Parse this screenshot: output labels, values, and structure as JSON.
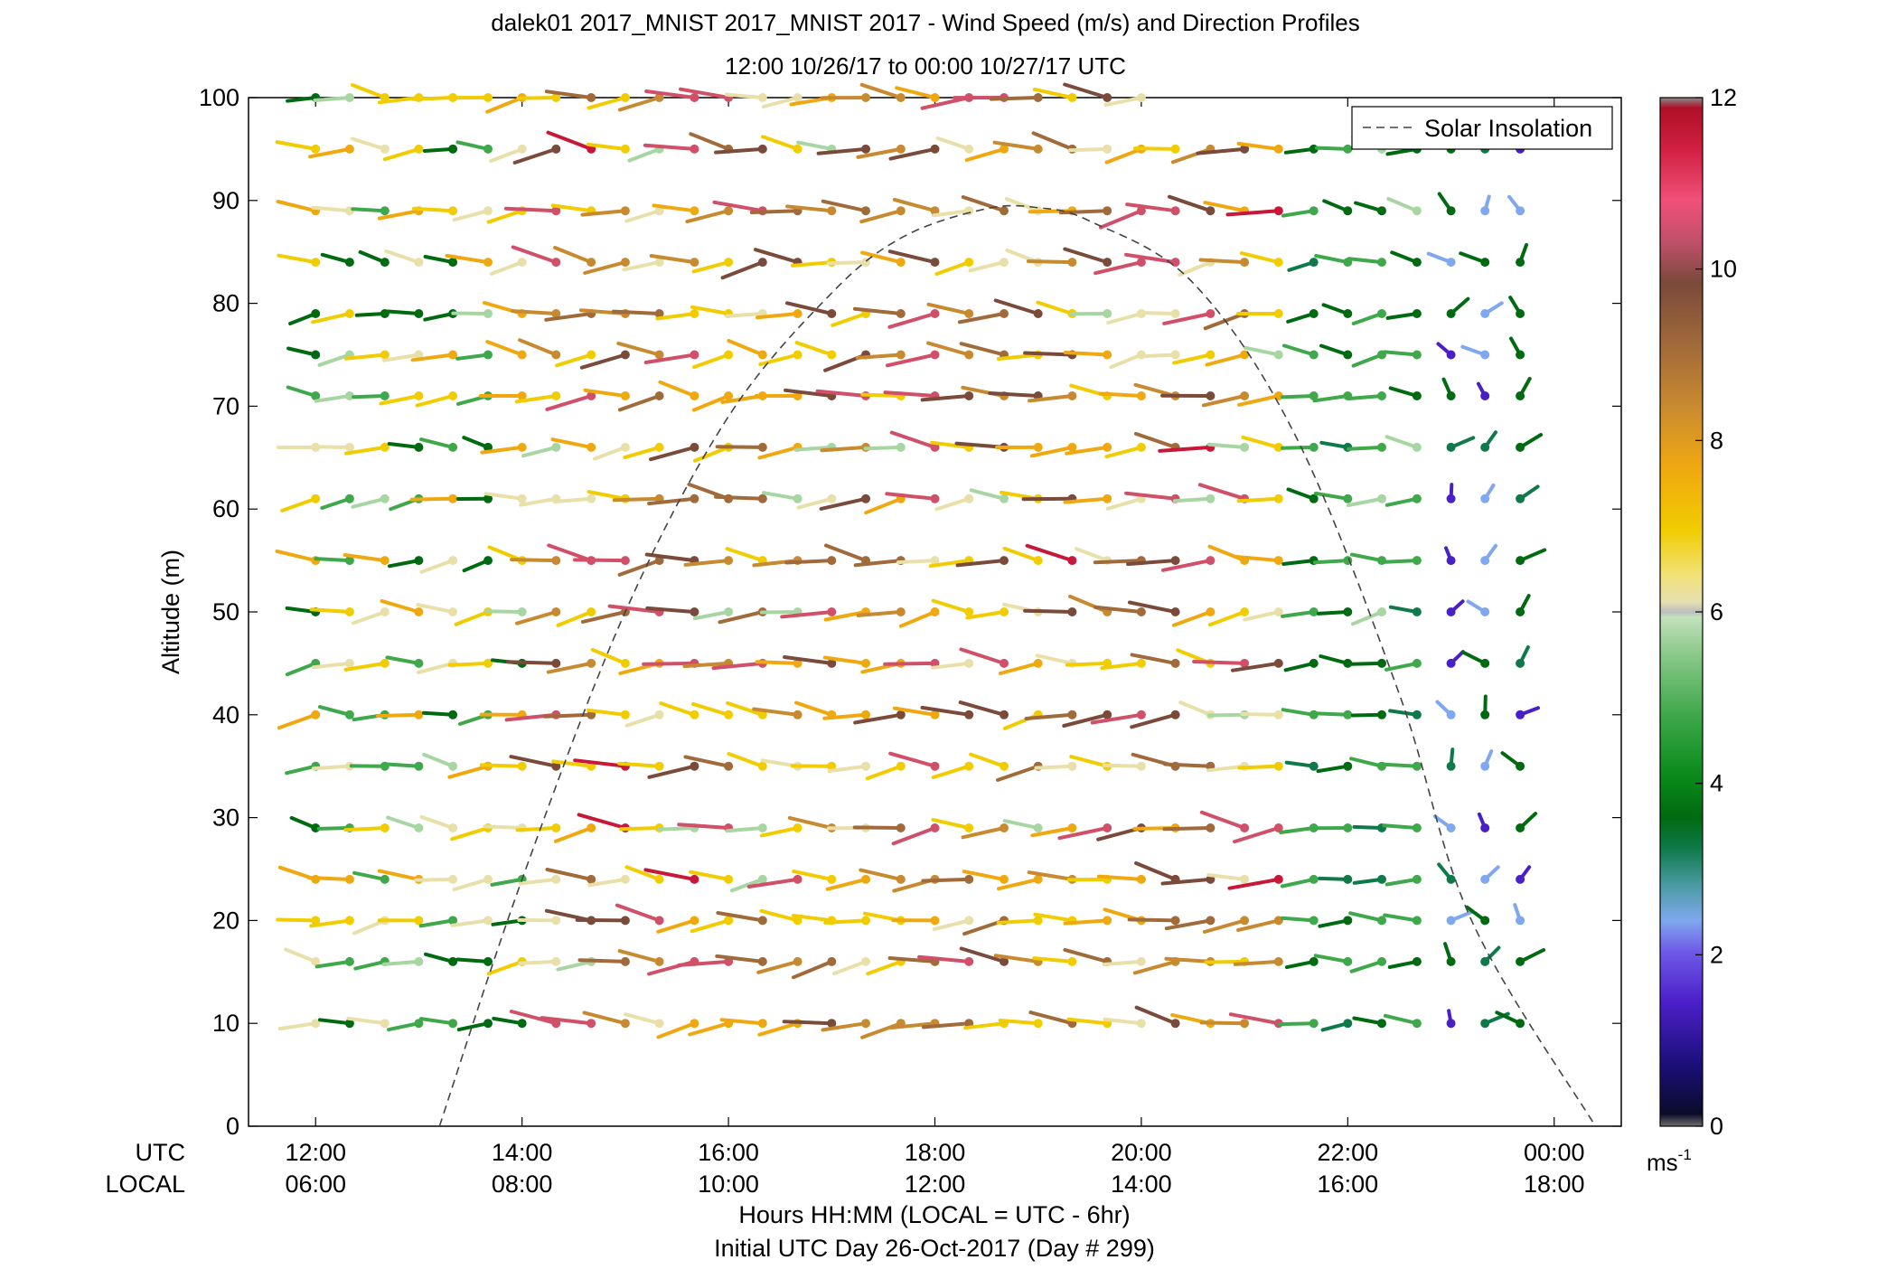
{
  "chart_data": {
    "type": "scatter",
    "title_line1": "dalek01 2017_MNIST 2017_MNIST 2017 - Wind Speed (m/s) and Direction Profiles",
    "title_line2": "12:00 10/26/17 to 00:00 10/27/17  UTC",
    "ylabel": "Altitude (m)",
    "ylim": [
      0,
      100
    ],
    "y_ticks": [
      "0",
      "10",
      "20",
      "30",
      "40",
      "50",
      "60",
      "70",
      "80",
      "90",
      "100"
    ],
    "x_row1_label": "UTC",
    "x_row2_label": "LOCAL",
    "x_ticks_utc": [
      "12:00",
      "14:00",
      "16:00",
      "18:00",
      "20:00",
      "22:00",
      "00:00"
    ],
    "x_ticks_local": [
      "06:00",
      "08:00",
      "10:00",
      "12:00",
      "14:00",
      "16:00",
      "18:00"
    ],
    "x_tick_hours": [
      0,
      2,
      4,
      6,
      8,
      10,
      12
    ],
    "xlim_hours": [
      -0.65,
      12.65
    ],
    "xlabel_line1": "Hours HH:MM  (LOCAL = UTC - 6hr)",
    "xlabel_line2": "Initial UTC Day 26-Oct-2017 (Day # 299)",
    "legend": "Solar Insolation",
    "legend_placement": "top-right",
    "colorbar": {
      "label": "ms",
      "label_exponent": "-1",
      "ticks": [
        "0",
        "2",
        "4",
        "6",
        "8",
        "10",
        "12"
      ],
      "range": [
        0,
        12
      ]
    },
    "series": [
      {
        "kind": "solar_insolation_curve",
        "style": "dashed",
        "points_hours_altitude": [
          [
            1.2,
            0
          ],
          [
            2.0,
            24
          ],
          [
            3.0,
            50
          ],
          [
            4.0,
            69
          ],
          [
            5.0,
            81
          ],
          [
            5.7,
            86.5
          ],
          [
            6.5,
            89.2
          ],
          [
            7.0,
            89.3
          ],
          [
            7.5,
            88
          ],
          [
            8.5,
            82
          ],
          [
            9.5,
            67
          ],
          [
            10.5,
            42
          ],
          [
            11.2,
            20
          ],
          [
            12.4,
            0
          ]
        ]
      },
      {
        "kind": "wind_barbs",
        "levels_m": [
          10,
          16,
          20,
          24,
          29,
          35,
          40,
          45,
          50,
          55,
          61,
          66,
          71,
          75,
          79,
          84,
          89,
          95,
          100
        ],
        "time_columns_hours": [
          0,
          0.33,
          0.67,
          1,
          1.33,
          1.67,
          2,
          2.33,
          2.67,
          3,
          3.33,
          3.67,
          4,
          4.33,
          4.67,
          5,
          5.33,
          5.67,
          6,
          6.33,
          6.67,
          7,
          7.33,
          7.67,
          8,
          8.33,
          8.67,
          9,
          9.33,
          9.67,
          10,
          10.33,
          10.67,
          11,
          11.33,
          11.67
        ],
        "speed_range_ms": [
          0,
          12
        ],
        "note_encoding": "stick length and color indicate speed; stick direction indicates wind direction"
      }
    ]
  }
}
